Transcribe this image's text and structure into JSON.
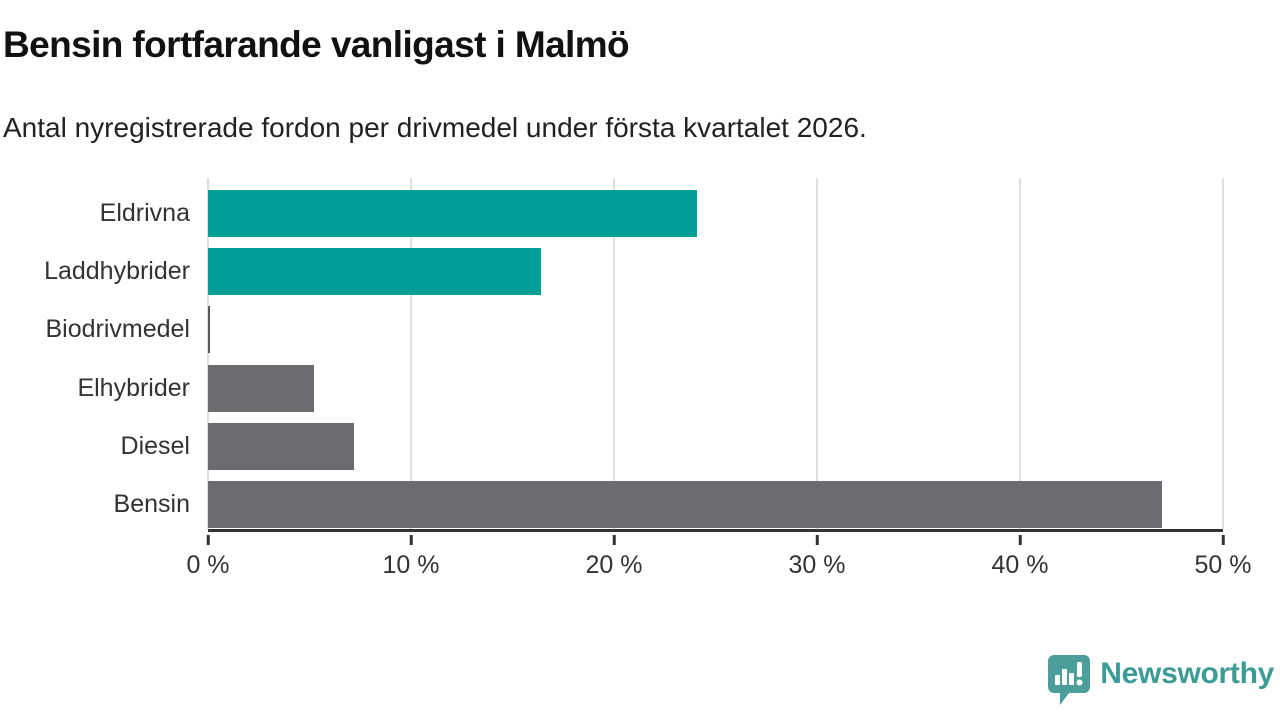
{
  "header": {
    "title": "Bensin fortfarande vanligast i Malmö",
    "subtitle": "Antal nyregistrerade fordon per drivmedel under första kvartalet 2026."
  },
  "chart_data": {
    "type": "bar",
    "orientation": "horizontal",
    "title": "Bensin fortfarande vanligast i Malmö",
    "subtitle": "Antal nyregistrerade fordon per drivmedel under första kvartalet 2026.",
    "categories": [
      "Eldrivna",
      "Laddhybrider",
      "Biodrivmedel",
      "Elhybrider",
      "Diesel",
      "Bensin"
    ],
    "values": [
      24.1,
      16.4,
      0.1,
      5.2,
      7.2,
      47.0
    ],
    "unit": "%",
    "bar_colors": [
      "#00a099",
      "#00a099",
      "#55555a",
      "#6b6b70",
      "#6b6b70",
      "#6b6b70"
    ],
    "xlabel": "",
    "ylabel": "",
    "xlim": [
      0,
      50
    ],
    "x_ticks": [
      0,
      10,
      20,
      30,
      40,
      50
    ],
    "x_tick_labels": [
      "0 %",
      "10 %",
      "20 %",
      "30 %",
      "40 %",
      "50 %"
    ],
    "grid": true,
    "legend": false
  },
  "colors": {
    "accent_teal": "#00a099",
    "neutral_gray": "#6b6b70",
    "gridline": "#e0e0e0",
    "axis": "#333333",
    "label_text": "#333333",
    "title_text": "#111111",
    "logo_teal": "#3d9b96",
    "logo_icon_teal": "#4b9e9a"
  },
  "footer": {
    "brand": "Newsworthy"
  }
}
